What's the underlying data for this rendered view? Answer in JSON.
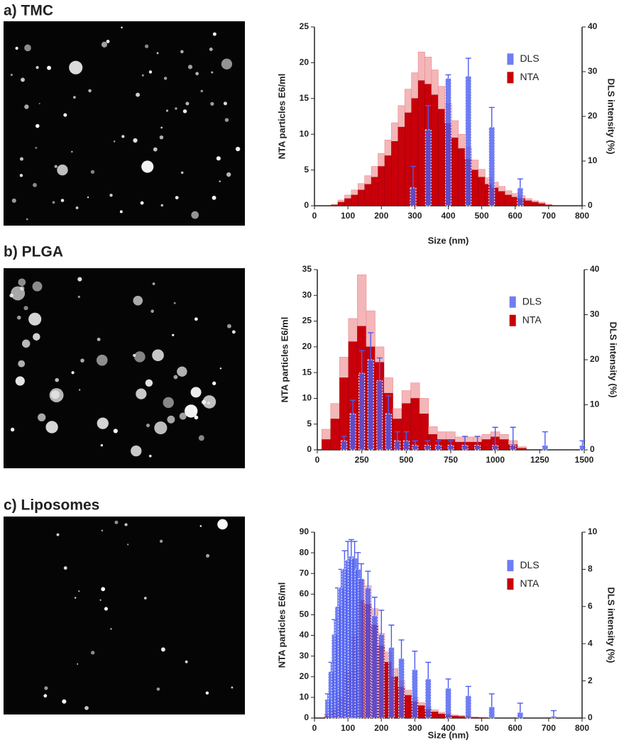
{
  "chart_data": [
    {
      "type": "bar",
      "title": "a) TMC",
      "xlabel": "Size (nm)",
      "ylabel": "NTA particles E6/ml",
      "y2label": "DLS intensity (%)",
      "xlim": [
        0,
        800
      ],
      "xticks": [
        0,
        100,
        200,
        300,
        400,
        500,
        600,
        700,
        800
      ],
      "ylim": [
        0,
        25
      ],
      "yticks": [
        0,
        5,
        10,
        15,
        20,
        25
      ],
      "y2lim": [
        0,
        40
      ],
      "y2ticks": [
        0,
        10,
        20,
        30,
        40
      ],
      "legend": "upper right",
      "series": [
        {
          "name": "DLS",
          "color": "#4b5cf0",
          "axis": "y2",
          "x": [
            295,
            340,
            400,
            460,
            530,
            615
          ],
          "values": [
            4,
            17,
            28.5,
            29,
            17.6,
            4
          ],
          "errors": [
            4.8,
            5.4,
            0.8,
            4,
            4.4,
            2
          ]
        },
        {
          "name": "NTA",
          "color": "#c8000a",
          "axis": "y",
          "x": [
            60,
            80,
            100,
            120,
            140,
            160,
            180,
            200,
            220,
            240,
            260,
            280,
            300,
            320,
            340,
            360,
            380,
            400,
            420,
            440,
            460,
            480,
            500,
            520,
            540,
            560,
            580,
            600,
            620,
            640,
            660,
            680,
            700
          ],
          "values": [
            0.1,
            0.5,
            1,
            1.5,
            2.2,
            3,
            4,
            5.5,
            7,
            9,
            11,
            13,
            15,
            17.5,
            17,
            15.5,
            13.5,
            11.5,
            9.5,
            8,
            6.5,
            5,
            4,
            3,
            2.5,
            2,
            1.5,
            1.2,
            1,
            0.7,
            0.5,
            0.3,
            0.1
          ],
          "errors": [
            0.1,
            0.3,
            0.5,
            0.7,
            0.9,
            1.2,
            1.5,
            1.8,
            2.2,
            2.6,
            3,
            3.3,
            3.6,
            4,
            3.8,
            3.5,
            3.2,
            2.8,
            2.4,
            2,
            1.7,
            1.4,
            1.1,
            0.9,
            0.8,
            0.7,
            0.6,
            0.5,
            0.4,
            0.3,
            0.2,
            0.2,
            0.1
          ]
        }
      ]
    },
    {
      "type": "bar",
      "title": "b) PLGA",
      "ylabel": "NTA particles E6/ml",
      "y2label": "DLS intensity (%)",
      "xlim": [
        0,
        1500
      ],
      "xticks": [
        0,
        250,
        500,
        750,
        1000,
        1250,
        1500
      ],
      "ylim": [
        0,
        35
      ],
      "yticks": [
        0,
        5,
        10,
        15,
        20,
        25,
        30,
        35
      ],
      "y2lim": [
        0,
        40
      ],
      "y2ticks": [
        0,
        10,
        20,
        30,
        40
      ],
      "legend": "upper right",
      "series": [
        {
          "name": "DLS",
          "color": "#4b5cf0",
          "axis": "y2",
          "x": [
            150,
            200,
            250,
            300,
            350,
            400,
            450,
            500,
            550,
            620,
            680,
            750,
            830,
            900,
            1000,
            1100,
            1280,
            1490
          ],
          "values": [
            2,
            8,
            17,
            20,
            15.4,
            8,
            2,
            2,
            1,
            1,
            1,
            1,
            1,
            1,
            1,
            1,
            1,
            1
          ],
          "errors": [
            1,
            3,
            5,
            6,
            5,
            4,
            2,
            2,
            1,
            1,
            1,
            1,
            2,
            2,
            4,
            4,
            3,
            1
          ]
        },
        {
          "name": "NTA",
          "color": "#c8000a",
          "axis": "y",
          "x": [
            50,
            100,
            150,
            200,
            250,
            300,
            350,
            400,
            450,
            500,
            550,
            600,
            650,
            700,
            750,
            800,
            850,
            900,
            950,
            1000,
            1050,
            1100,
            1150
          ],
          "values": [
            2,
            6,
            14,
            21,
            24,
            20,
            17,
            11,
            6,
            9,
            10,
            7,
            3,
            2,
            2,
            1.5,
            1.5,
            1.5,
            2,
            2.5,
            2,
            1,
            0.3
          ],
          "errors": [
            2,
            3,
            4,
            4.5,
            10,
            7,
            3,
            3,
            2,
            2.5,
            3,
            3,
            1.5,
            1.5,
            1.5,
            1,
            1,
            1,
            1,
            1,
            1,
            0.8,
            0.3
          ]
        }
      ]
    },
    {
      "type": "bar",
      "title": "c) Liposomes",
      "xlabel": "Size (nm)",
      "ylabel": "NTA particles E6/ml",
      "y2label": "DLS intensity (%)",
      "xlim": [
        0,
        800
      ],
      "xticks": [
        0,
        100,
        200,
        300,
        400,
        500,
        600,
        700,
        800
      ],
      "ylim": [
        0,
        90
      ],
      "yticks": [
        0,
        10,
        20,
        30,
        40,
        50,
        60,
        70,
        80,
        90
      ],
      "y2lim": [
        0,
        10
      ],
      "y2ticks": [
        0,
        2,
        4,
        6,
        8,
        10
      ],
      "legend": "upper right",
      "series": [
        {
          "name": "DLS",
          "color": "#4b5cf0",
          "axis": "y2",
          "x": [
            40,
            50,
            60,
            70,
            80,
            90,
            100,
            110,
            120,
            130,
            140,
            160,
            180,
            200,
            230,
            260,
            300,
            340,
            400,
            460,
            530,
            615,
            715
          ],
          "values": [
            1,
            2.5,
            4.5,
            6,
            7,
            8,
            8.5,
            8.7,
            8.6,
            8,
            7.5,
            7,
            5.5,
            4.5,
            3.8,
            3.2,
            2.6,
            2.1,
            1.6,
            1.2,
            0.6,
            0.3,
            0.1
          ],
          "errors": [
            0.3,
            0.5,
            0.8,
            1,
            1,
            1,
            1,
            0.9,
            0.9,
            0.9,
            0.8,
            0.9,
            1,
            1.3,
            1.2,
            1,
            1,
            0.9,
            0.5,
            0.5,
            0.7,
            0.5,
            0.3
          ]
        },
        {
          "name": "NTA",
          "color": "#c8000a",
          "axis": "y",
          "x": [
            40,
            60,
            80,
            100,
            120,
            140,
            160,
            180,
            200,
            220,
            240,
            260,
            280,
            300,
            320,
            340,
            360,
            380,
            400,
            420,
            440,
            460,
            480,
            500
          ],
          "values": [
            1,
            4,
            10,
            22,
            40,
            57,
            55,
            45,
            35,
            27,
            20,
            15,
            11,
            8,
            6,
            4,
            3,
            2,
            1.5,
            1,
            0.8,
            0.5,
            0.3,
            0.2
          ],
          "errors": [
            1,
            2,
            3,
            5,
            8,
            10,
            9,
            8,
            6,
            5,
            4,
            3,
            2.5,
            2,
            1.5,
            1.2,
            1,
            0.8,
            0.6,
            0.5,
            0.4,
            0.3,
            0.2,
            0.1
          ]
        }
      ]
    }
  ]
}
